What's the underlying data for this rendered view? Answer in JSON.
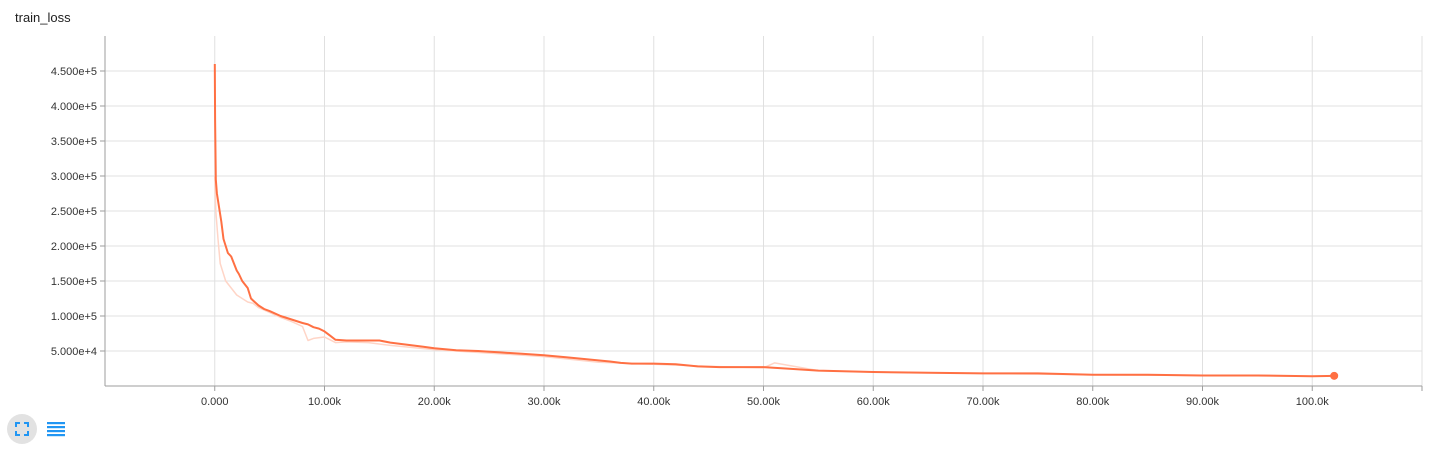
{
  "card": {
    "title": "train_loss"
  },
  "controls": {
    "expand_icon": "fullscreen-icon",
    "data_icon": "list-icon"
  },
  "colors": {
    "series": "#ff7043",
    "series_raw": "#ffd5c7",
    "grid": "#e0e0e0",
    "axis": "#9e9e9e",
    "button_icon": "#2196f3"
  },
  "chart_data": {
    "type": "line",
    "title": "train_loss",
    "xlabel": "",
    "ylabel": "",
    "xlim": [
      -10000,
      110000
    ],
    "ylim": [
      0,
      500000
    ],
    "grid": true,
    "x_ticks": [
      0,
      10000,
      20000,
      30000,
      40000,
      50000,
      60000,
      70000,
      80000,
      90000,
      100000
    ],
    "x_tick_labels": [
      "0.000",
      "10.00k",
      "20.00k",
      "30.00k",
      "40.00k",
      "50.00k",
      "60.00k",
      "70.00k",
      "80.00k",
      "90.00k",
      "100.0k"
    ],
    "y_ticks": [
      50000,
      100000,
      150000,
      200000,
      250000,
      300000,
      350000,
      400000,
      450000
    ],
    "y_tick_labels": [
      "5.000e+4",
      "1.000e+5",
      "1.500e+5",
      "2.000e+5",
      "2.500e+5",
      "3.000e+5",
      "3.500e+5",
      "4.000e+5",
      "4.500e+5"
    ],
    "series": [
      {
        "style": "smoothed",
        "x": [
          0,
          30,
          100,
          200,
          400,
          600,
          800,
          1000,
          1200,
          1500,
          2000,
          2200,
          2500,
          3000,
          3300,
          3500,
          4000,
          4500,
          5000,
          6000,
          7000,
          8000,
          8500,
          9000,
          9500,
          10000,
          10500,
          11000,
          12000,
          14000,
          15000,
          16000,
          17000,
          18000,
          19000,
          20000,
          22000,
          24000,
          26000,
          28000,
          30000,
          32000,
          34000,
          36000,
          37000,
          38000,
          40000,
          42000,
          44000,
          46000,
          48000,
          50000,
          52000,
          55000,
          60000,
          65000,
          70000,
          75000,
          80000,
          85000,
          90000,
          95000,
          100000,
          102000
        ],
        "y": [
          460000,
          380000,
          295000,
          275000,
          255000,
          235000,
          210000,
          200000,
          190000,
          185000,
          165000,
          160000,
          150000,
          140000,
          125000,
          122000,
          115000,
          110000,
          107000,
          100000,
          95000,
          90000,
          88000,
          84000,
          82000,
          78000,
          72000,
          66000,
          65000,
          65000,
          65000,
          62000,
          60000,
          58000,
          56000,
          54000,
          51000,
          50000,
          48000,
          46000,
          44000,
          41000,
          38000,
          35000,
          33000,
          32000,
          32000,
          31000,
          28000,
          27000,
          27000,
          27000,
          25000,
          22000,
          20000,
          19000,
          18000,
          18000,
          16000,
          16000,
          15000,
          15000,
          14000,
          14500
        ]
      },
      {
        "style": "raw",
        "x": [
          0,
          100,
          300,
          500,
          800,
          1000,
          1500,
          2000,
          2500,
          3000,
          3500,
          4000,
          5000,
          6000,
          7000,
          8000,
          8500,
          9000,
          10000,
          11000,
          12000,
          14000,
          16000,
          18000,
          20000,
          25000,
          30000,
          35000,
          40000,
          45000,
          50000,
          51000,
          55000,
          60000,
          70000,
          80000,
          90000,
          100000,
          102000
        ],
        "y": [
          300000,
          250000,
          210000,
          175000,
          160000,
          150000,
          140000,
          130000,
          125000,
          120000,
          118000,
          112000,
          105000,
          98000,
          92000,
          85000,
          65000,
          68000,
          70000,
          62000,
          63000,
          62000,
          58000,
          55000,
          52000,
          47000,
          42000,
          34000,
          31000,
          28000,
          26000,
          33000,
          22000,
          20000,
          18000,
          16000,
          15000,
          14000,
          14500
        ]
      }
    ],
    "last_point": {
      "x": 102000,
      "y": 14500
    }
  }
}
